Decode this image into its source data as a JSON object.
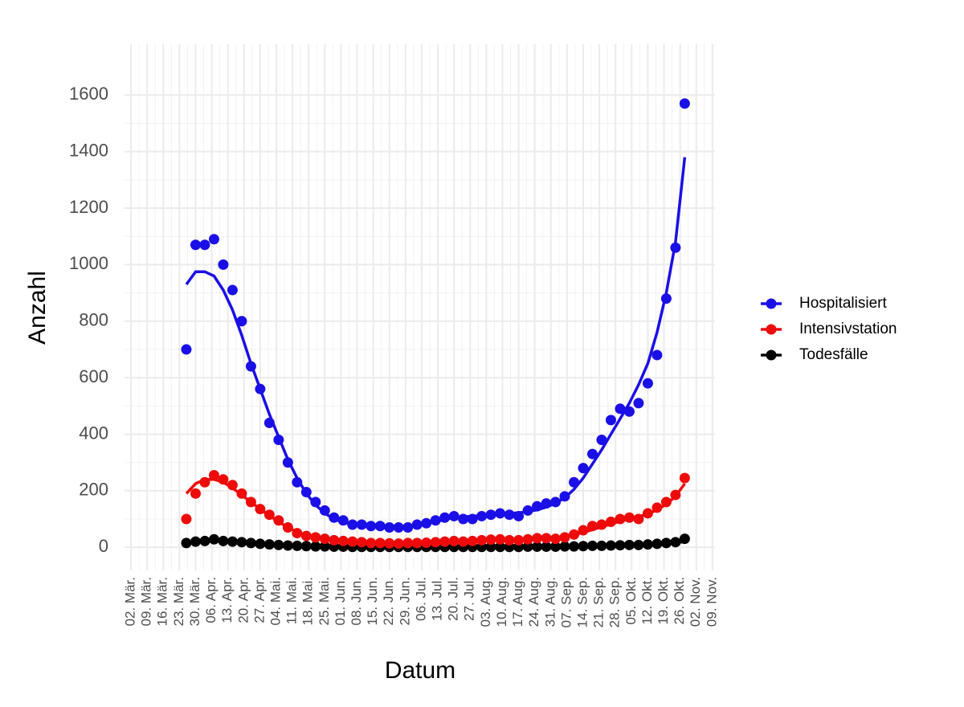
{
  "chart_data": {
    "type": "line",
    "x_label": "Datum",
    "y_label": "Anzahl",
    "x": [
      "26. Mär.",
      "30. Mär.",
      "03. Apr.",
      "07. Apr.",
      "11. Apr.",
      "15. Apr.",
      "19. Apr.",
      "23. Apr.",
      "27. Apr.",
      "01. Mai.",
      "05. Mai.",
      "09. Mai.",
      "13. Mai.",
      "17. Mai.",
      "21. Mai.",
      "25. Mai.",
      "29. Mai.",
      "02. Jun.",
      "06. Jun.",
      "10. Jun.",
      "14. Jun.",
      "18. Jun.",
      "22. Jun.",
      "26. Jun.",
      "30. Jun.",
      "04. Jul.",
      "08. Jul.",
      "12. Jul.",
      "16. Jul.",
      "20. Jul.",
      "24. Jul.",
      "28. Jul.",
      "01. Aug.",
      "05. Aug.",
      "09. Aug.",
      "13. Aug.",
      "17. Aug.",
      "21. Aug.",
      "25. Aug.",
      "29. Aug.",
      "02. Sep.",
      "06. Sep.",
      "10. Sep.",
      "14. Sep.",
      "18. Sep.",
      "22. Sep.",
      "26. Sep.",
      "30. Sep.",
      "04. Okt.",
      "08. Okt.",
      "12. Okt.",
      "16. Okt.",
      "20. Okt.",
      "24. Okt.",
      "28. Okt."
    ],
    "series": [
      {
        "name": "Hospitalisiert",
        "color": "#1a0fe6",
        "values": [
          700,
          1070,
          1070,
          1090,
          1000,
          910,
          800,
          640,
          560,
          440,
          380,
          300,
          230,
          195,
          160,
          130,
          105,
          95,
          80,
          80,
          75,
          75,
          70,
          70,
          70,
          80,
          85,
          95,
          105,
          110,
          100,
          100,
          110,
          115,
          120,
          115,
          110,
          130,
          145,
          155,
          160,
          180,
          230,
          280,
          330,
          380,
          450,
          490,
          480,
          510,
          580,
          680,
          880,
          1060,
          1570
        ],
        "trend": [
          930,
          975,
          975,
          960,
          910,
          840,
          750,
          650,
          560,
          470,
          390,
          310,
          245,
          190,
          150,
          120,
          100,
          88,
          80,
          75,
          72,
          70,
          70,
          72,
          75,
          80,
          85,
          90,
          98,
          105,
          108,
          110,
          112,
          115,
          118,
          120,
          122,
          126,
          132,
          142,
          155,
          175,
          205,
          245,
          295,
          345,
          400,
          455,
          510,
          575,
          650,
          760,
          900,
          1080,
          1380
        ]
      },
      {
        "name": "Intensivstation",
        "color": "#ee0a0a",
        "values": [
          100,
          190,
          230,
          255,
          240,
          220,
          190,
          160,
          135,
          115,
          95,
          70,
          50,
          40,
          35,
          30,
          25,
          22,
          20,
          18,
          15,
          15,
          14,
          13,
          15,
          15,
          16,
          18,
          20,
          22,
          20,
          22,
          25,
          27,
          28,
          25,
          25,
          28,
          32,
          32,
          30,
          35,
          45,
          60,
          75,
          80,
          90,
          100,
          105,
          100,
          120,
          140,
          160,
          185,
          245
        ],
        "trend": [
          190,
          225,
          240,
          240,
          230,
          210,
          185,
          160,
          135,
          112,
          90,
          70,
          54,
          42,
          34,
          28,
          24,
          20,
          18,
          17,
          16,
          15,
          15,
          15,
          15,
          16,
          17,
          18,
          19,
          20,
          21,
          22,
          23,
          24,
          25,
          26,
          27,
          28,
          29,
          31,
          34,
          38,
          44,
          52,
          62,
          72,
          82,
          92,
          100,
          108,
          118,
          132,
          152,
          180,
          225
        ]
      },
      {
        "name": "Todesfälle",
        "color": "#000000",
        "values": [
          15,
          20,
          22,
          28,
          22,
          20,
          18,
          15,
          12,
          10,
          8,
          6,
          5,
          4,
          3,
          3,
          2,
          2,
          1,
          1,
          1,
          1,
          1,
          1,
          1,
          1,
          1,
          1,
          1,
          1,
          1,
          1,
          1,
          1,
          1,
          1,
          1,
          2,
          2,
          2,
          2,
          3,
          3,
          4,
          5,
          5,
          6,
          7,
          8,
          8,
          10,
          12,
          15,
          18,
          30
        ],
        "trend": [
          14,
          18,
          20,
          21,
          20,
          18,
          16,
          14,
          12,
          10,
          8,
          6,
          5,
          4,
          3,
          2,
          2,
          1,
          1,
          1,
          1,
          1,
          1,
          1,
          1,
          1,
          1,
          1,
          1,
          1,
          1,
          1,
          1,
          1,
          1,
          1,
          1,
          1,
          2,
          2,
          2,
          2,
          3,
          3,
          4,
          5,
          5,
          6,
          7,
          8,
          9,
          10,
          12,
          15,
          20
        ]
      }
    ],
    "xticks": [
      "02. Mär.",
      "09. Mär.",
      "16. Mär.",
      "23. Mär.",
      "30. Mär.",
      "06. Apr.",
      "13. Apr.",
      "20. Apr.",
      "27. Apr.",
      "04. Mai.",
      "11. Mai.",
      "18. Mai.",
      "25. Mai.",
      "01. Jun.",
      "08. Jun.",
      "15. Jun.",
      "22. Jun.",
      "29. Jun.",
      "06. Jul.",
      "13. Jul.",
      "20. Jul.",
      "27. Jul.",
      "03. Aug.",
      "10. Aug.",
      "17. Aug.",
      "24. Aug.",
      "31. Aug.",
      "07. Sep.",
      "14. Sep.",
      "21. Sep.",
      "28. Sep.",
      "05. Okt.",
      "12. Okt.",
      "19. Okt.",
      "26. Okt.",
      "02. Nov.",
      "09. Nov."
    ],
    "ylim": [
      -82,
      1780
    ],
    "yticks": [
      0,
      200,
      400,
      600,
      800,
      1000,
      1200,
      1400,
      1600
    ],
    "grid": true,
    "legend": "right"
  }
}
